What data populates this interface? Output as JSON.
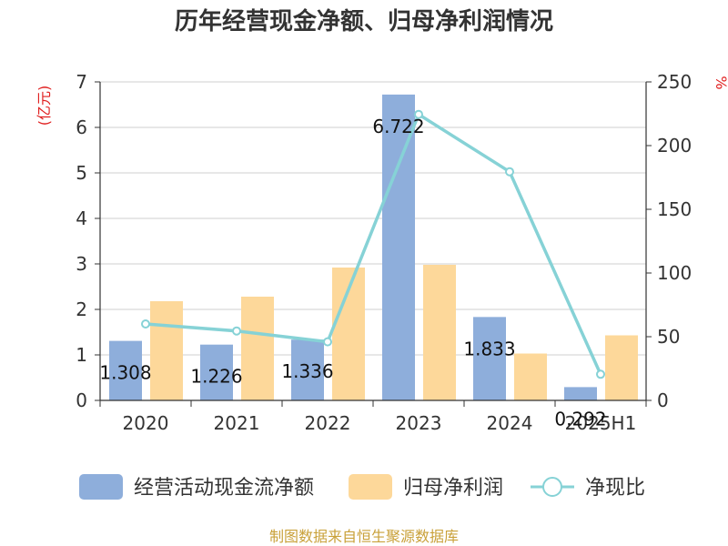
{
  "chart_data": {
    "type": "bar",
    "title": "历年经营现金净额、归母净利润情况",
    "categories": [
      "2020",
      "2021",
      "2022",
      "2023",
      "2024",
      "2025H1"
    ],
    "y_left": {
      "unit": "(亿元)",
      "ylim": [
        0,
        7
      ],
      "ticks": [
        0,
        1,
        2,
        3,
        4,
        5,
        6,
        7
      ]
    },
    "y_right": {
      "unit": "%",
      "ylim": [
        0,
        250
      ],
      "ticks": [
        0,
        50,
        100,
        150,
        200,
        250
      ]
    },
    "grid": true,
    "legend_position": "bottom",
    "series": [
      {
        "name": "经营活动现金流净额",
        "type": "bar",
        "axis": "left",
        "color": "#8eaedb",
        "values": [
          1.308,
          1.226,
          1.336,
          6.722,
          1.833,
          0.292
        ],
        "labels": [
          "1.308",
          "1.226",
          "1.336",
          "6.722",
          "1.833",
          "0.292"
        ]
      },
      {
        "name": "归母净利润",
        "type": "bar",
        "axis": "left",
        "color": "#fdd89a",
        "values": [
          2.18,
          2.28,
          2.92,
          2.98,
          1.03,
          1.43
        ]
      },
      {
        "name": "净现比",
        "type": "line",
        "axis": "right",
        "color": "#86d2d6",
        "values": [
          60,
          54.5,
          46,
          224.5,
          179.5,
          20.5
        ]
      }
    ]
  },
  "source_text": "制图数据来自恒生聚源数据库"
}
